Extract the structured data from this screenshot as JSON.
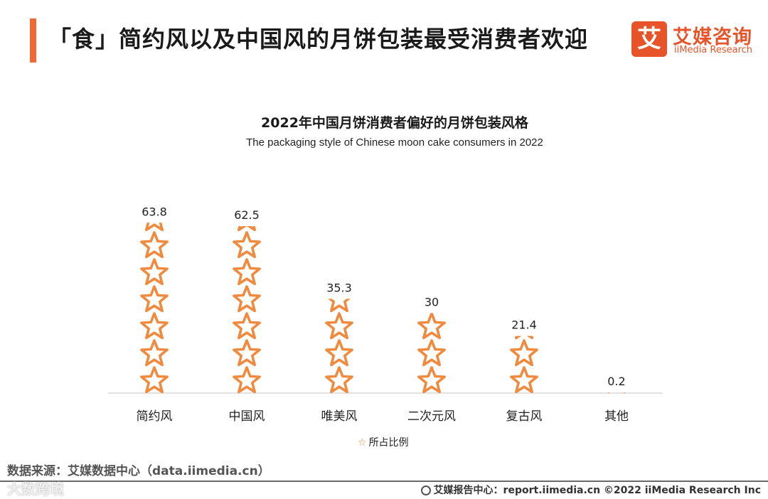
{
  "header": {
    "title": "「食」简约风以及中国风的月饼包装最受消费者欢迎"
  },
  "logo": {
    "mark": "艾",
    "cn": "艾媒咨询",
    "en": "iiMedia Research"
  },
  "chart_data": {
    "type": "bar",
    "title": "2022年中国月饼消费者偏好的月饼包装风格",
    "subtitle": "The packaging style of Chinese moon cake consumers in 2022",
    "categories": [
      "简约风",
      "中国风",
      "唯美风",
      "二次元风",
      "复古风",
      "其他"
    ],
    "values": [
      63.8,
      62.5,
      35.3,
      30,
      21.4,
      0.2
    ],
    "value_labels": [
      "63.8",
      "62.5",
      "35.3",
      "30",
      "21.4",
      "0.2"
    ],
    "series": [
      {
        "name": "所占比例",
        "values": [
          63.8,
          62.5,
          35.3,
          30,
          21.4,
          0.2
        ]
      }
    ],
    "xlabel": "",
    "ylabel": "",
    "ylim": [
      0,
      66
    ],
    "legend": "bottom-center",
    "marker": "star-pictogram",
    "color": "#f08a3e"
  },
  "legend": {
    "label": "所占比例",
    "icon": "star-outline-icon"
  },
  "source": "数据来源：艾媒数据中心（data.iimedia.cn）",
  "watermark": "大数跨境",
  "footer": {
    "text": "艾媒报告中心：report.iimedia.cn  ©2022  iiMedia Research  Inc"
  },
  "colors": {
    "accent": "#f06a35",
    "brand": "#e8542a",
    "star": "#f08a3e"
  }
}
